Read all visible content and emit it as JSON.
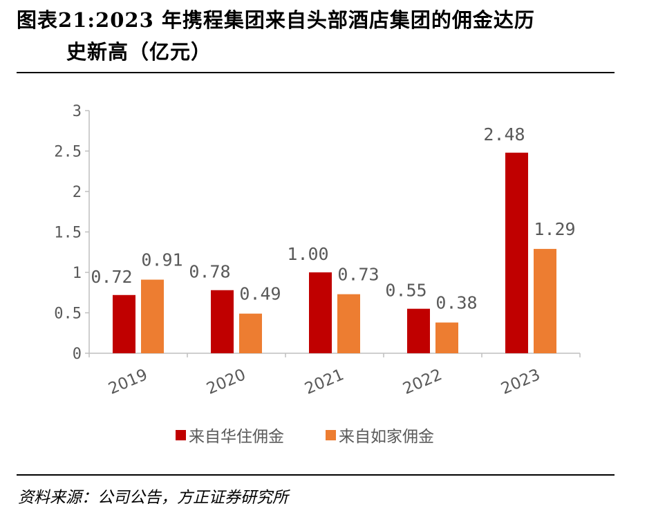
{
  "title_line1": "图表21:2023 年携程集团来自头部酒店集团的佣金达历",
  "title_line2": "史新高（亿元）",
  "source": "资料来源：公司公告，方正证券研究所",
  "colors": {
    "huazhu": "#C00000",
    "rujia": "#ED7D31",
    "axis": "#BFBFBF",
    "text": "#595959"
  },
  "chart_data": {
    "type": "bar",
    "categories": [
      "2019",
      "2020",
      "2021",
      "2022",
      "2023"
    ],
    "series": [
      {
        "name": "来自华住佣金",
        "values": [
          0.72,
          0.78,
          1.0,
          0.55,
          2.48
        ],
        "labels": [
          "0.72",
          "0.78",
          "1.00",
          "0.55",
          "2.48"
        ]
      },
      {
        "name": "来自如家佣金",
        "values": [
          0.91,
          0.49,
          0.73,
          0.38,
          1.29
        ],
        "labels": [
          "0.91",
          "0.49",
          "0.73",
          "0.38",
          "1.29"
        ]
      }
    ],
    "yticks": [
      "0",
      "0.5",
      "1",
      "1.5",
      "2",
      "2.5",
      "3"
    ],
    "ylim": [
      0,
      3
    ],
    "grid": false,
    "legend": "bottom"
  }
}
